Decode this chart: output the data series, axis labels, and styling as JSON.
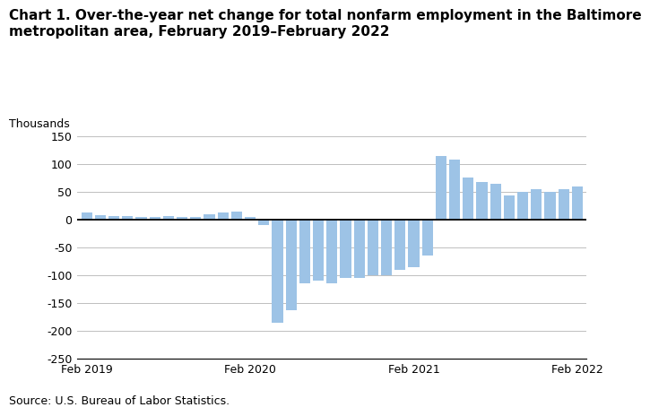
{
  "title_line1": "Chart 1. Over-the-year net change for total nonfarm employment in the Baltimore",
  "title_line2": "metropolitan area, February 2019–February 2022",
  "ylabel": "Thousands",
  "source": "Source: U.S. Bureau of Labor Statistics.",
  "bar_color": "#9dc3e6",
  "ylim": [
    -250,
    150
  ],
  "yticks": [
    -250,
    -200,
    -150,
    -100,
    -50,
    0,
    50,
    100,
    150
  ],
  "values": [
    12,
    8,
    7,
    6,
    5,
    5,
    6,
    5,
    5,
    9,
    12,
    15,
    4,
    -10,
    -185,
    -163,
    -115,
    -110,
    -115,
    -105,
    -105,
    -100,
    -100,
    -90,
    -85,
    -65,
    115,
    107,
    75,
    68,
    65,
    44,
    50,
    55,
    50,
    55,
    60
  ],
  "xtick_positions": [
    0,
    12,
    24,
    36
  ],
  "xtick_labels": [
    "Feb 2019",
    "Feb 2020",
    "Feb 2021",
    "Feb 2022"
  ],
  "background_color": "#ffffff",
  "grid_color": "#bfbfbf",
  "zero_line_color": "#000000",
  "spine_color": "#000000",
  "title_fontsize": 11,
  "axis_fontsize": 9,
  "source_fontsize": 9
}
